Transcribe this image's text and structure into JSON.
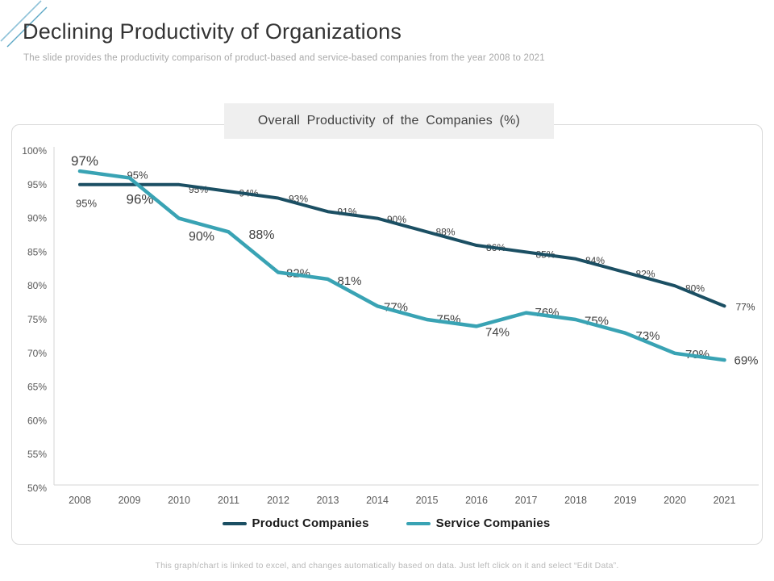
{
  "slide": {
    "title": "Declining Productivity of Organizations",
    "subtitle": "The slide provides the productivity comparison of product-based and service-based companies from the year 2008 to 2021",
    "footer": "This graph/chart is linked to excel, and changes automatically based on data. Just left click on it and select “Edit Data”."
  },
  "chart_data": {
    "type": "line",
    "title": "Overall Productivity of the Companies (%)",
    "categories": [
      "2008",
      "2009",
      "2010",
      "2011",
      "2012",
      "2013",
      "2014",
      "2015",
      "2016",
      "2017",
      "2018",
      "2019",
      "2020",
      "2021"
    ],
    "series": [
      {
        "name": "Product Companies",
        "color": "#1b4f63",
        "values": [
          95,
          95,
          95,
          94,
          93,
          91,
          90,
          88,
          86,
          85,
          84,
          82,
          80,
          77
        ]
      },
      {
        "name": "Service Companies",
        "color": "#39a3b4",
        "values": [
          97,
          96,
          90,
          88,
          82,
          81,
          77,
          75,
          74,
          76,
          75,
          73,
          70,
          69
        ]
      }
    ],
    "ylim": [
      50,
      100
    ],
    "ytick_step": 5,
    "ytick_suffix": "%",
    "data_label_suffix": "%",
    "xlabel": "",
    "ylabel": "",
    "grid": false,
    "data_labels": true,
    "legend_position": "bottom",
    "axis_color": "#d6d6d6",
    "tick_label_color": "#595959",
    "data_label_color": "#404040"
  }
}
